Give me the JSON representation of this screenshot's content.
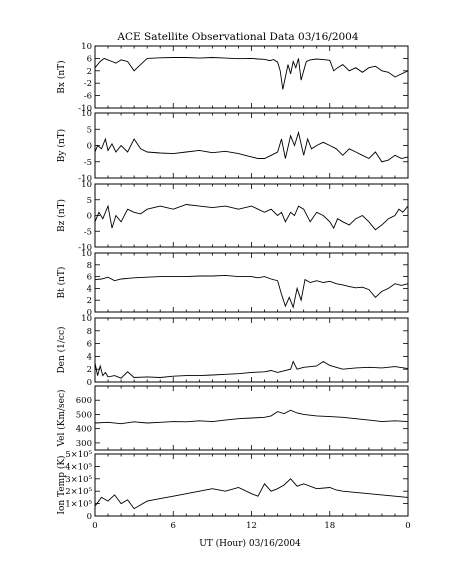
{
  "chart_data": {
    "type": "line",
    "title": "ACE Satellite Observational Data   03/16/2004",
    "xlabel": "UT (Hour)   03/16/2004",
    "x_ticks": [
      "0",
      "6",
      "12",
      "18",
      "0"
    ],
    "xlim": [
      0,
      24
    ],
    "grid": false,
    "panels": [
      {
        "ylabel": "Bx (nT)",
        "ylim": [
          -10,
          10
        ],
        "yticks": [
          "10",
          "6",
          "2",
          "-2",
          "-6",
          "-10"
        ],
        "series": [
          {
            "x": [
              0,
              0.2,
              0.4,
              0.7,
              1,
              1.3,
              1.6,
              2,
              2.5,
              3,
              3.5,
              4,
              5,
              6,
              7,
              8,
              9,
              10,
              11,
              12,
              12.5,
              13,
              13.4,
              13.7,
              14,
              14.2,
              14.4,
              14.6,
              14.8,
              15,
              15.2,
              15.4,
              15.6,
              15.8,
              16,
              16.2,
              16.5,
              17,
              17.5,
              18,
              18.3,
              18.6,
              19,
              19.5,
              20,
              20.5,
              21,
              21.5,
              22,
              22.5,
              23,
              23.5,
              24
            ],
            "values": [
              3,
              4,
              5,
              6,
              5.5,
              5,
              4.5,
              5.5,
              5,
              2,
              4,
              6,
              6.2,
              6.3,
              6.3,
              6.1,
              6.3,
              6.1,
              5.9,
              6,
              5.8,
              5.7,
              5.3,
              5.6,
              4.8,
              2,
              -4,
              0,
              4,
              1,
              5,
              3,
              6,
              -1,
              2,
              5,
              5.5,
              5.8,
              5.6,
              5.4,
              2,
              3,
              4,
              2,
              3,
              1.5,
              3,
              3.5,
              2,
              1.5,
              0,
              1,
              2
            ]
          }
        ]
      },
      {
        "ylabel": "By (nT)",
        "ylim": [
          -10,
          10
        ],
        "yticks": [
          "10",
          "5",
          "0",
          "-5",
          "-10"
        ],
        "series": [
          {
            "x": [
              0,
              0.2,
              0.5,
              0.8,
              1,
              1.3,
              1.6,
              2,
              2.5,
              3,
              3.5,
              4,
              5,
              6,
              7,
              8,
              9,
              10,
              11,
              11.5,
              12,
              12.5,
              13,
              13.5,
              14,
              14.3,
              14.6,
              15,
              15.3,
              15.6,
              16,
              16.3,
              16.6,
              17,
              17.5,
              18,
              18.5,
              19,
              19.5,
              20,
              20.5,
              21,
              21.5,
              22,
              22.5,
              23,
              23.5,
              24
            ],
            "values": [
              -2,
              0,
              -1,
              2,
              -1.5,
              0.5,
              -2,
              0,
              -2,
              2,
              -1,
              -2,
              -2.3,
              -2.5,
              -2,
              -1.5,
              -2.2,
              -1.8,
              -2.5,
              -3,
              -3.5,
              -4,
              -4,
              -3,
              -2,
              2,
              -4,
              3,
              0,
              4,
              -3,
              2,
              -1,
              0,
              1,
              0,
              -1,
              -3,
              -1,
              -2,
              -3,
              -4,
              -2,
              -5,
              -4.5,
              -3,
              -4,
              -3.5
            ]
          }
        ]
      },
      {
        "ylabel": "Bz (nT)",
        "ylim": [
          -10,
          10
        ],
        "yticks": [
          "10",
          "5",
          "0",
          "-5",
          "-10"
        ],
        "series": [
          {
            "x": [
              0,
              0.3,
              0.6,
              1,
              1.3,
              1.6,
              2,
              2.5,
              3,
              3.5,
              4,
              5,
              6,
              7,
              8,
              9,
              10,
              11,
              12,
              12.5,
              13,
              13.5,
              14,
              14.3,
              14.6,
              15,
              15.3,
              15.6,
              16,
              16.5,
              17,
              17.5,
              18,
              18.3,
              18.6,
              19,
              19.5,
              20,
              20.5,
              21,
              21.5,
              22,
              22.5,
              23,
              23.3,
              23.6,
              24
            ],
            "values": [
              -2,
              1,
              -1,
              3,
              -4,
              0,
              -2,
              2,
              1,
              0.5,
              2,
              3,
              2,
              3.5,
              3,
              2.5,
              3,
              2,
              3,
              2,
              1,
              2,
              0,
              1,
              -2,
              1,
              0,
              3,
              2,
              -2,
              1,
              0,
              -2,
              -4,
              -1,
              -2,
              -3,
              -1,
              0,
              -2,
              -4.5,
              -3,
              -1,
              0,
              2,
              1,
              3
            ]
          }
        ]
      },
      {
        "ylabel": "Bt (nT)",
        "ylim": [
          0,
          10
        ],
        "yticks": [
          "10",
          "8",
          "6",
          "4",
          "2",
          "0"
        ],
        "series": [
          {
            "x": [
              0,
              0.5,
              1,
              1.5,
              2,
              3,
              4,
              5,
              6,
              7,
              8,
              9,
              10,
              11,
              12,
              12.5,
              13,
              13.5,
              14,
              14.3,
              14.6,
              14.9,
              15.2,
              15.5,
              15.8,
              16.1,
              16.5,
              17,
              17.5,
              18,
              18.5,
              19,
              19.5,
              20,
              20.5,
              21,
              21.5,
              22,
              22.5,
              23,
              23.5,
              24
            ],
            "values": [
              5.5,
              5.6,
              5.9,
              5.3,
              5.6,
              5.8,
              5.9,
              6,
              6,
              6,
              6.1,
              6.1,
              6.2,
              6,
              6,
              5.8,
              6,
              5.6,
              5.3,
              3,
              1,
              2.5,
              0.8,
              4,
              2,
              5.5,
              5,
              5.3,
              5,
              5.2,
              4.8,
              4.6,
              4.3,
              4.1,
              4.2,
              3.8,
              2.5,
              3.5,
              4,
              4.8,
              4.5,
              4.8
            ]
          }
        ]
      },
      {
        "ylabel": "Den (1/cc)",
        "ylim": [
          0,
          10
        ],
        "yticks": [
          "10",
          "8",
          "6",
          "4",
          "2",
          "0"
        ],
        "series": [
          {
            "x": [
              0,
              0.2,
              0.4,
              0.6,
              0.8,
              1,
              1.5,
              2,
              2.5,
              3,
              4,
              5,
              6,
              7,
              8,
              9,
              10,
              11,
              12,
              13,
              13.5,
              14,
              15,
              15.2,
              15.5,
              16,
              17,
              17.5,
              18,
              19,
              20,
              21,
              22,
              23,
              24
            ],
            "values": [
              3,
              1,
              2.5,
              1,
              1.5,
              0.8,
              1,
              0.6,
              1.6,
              0.7,
              0.8,
              0.7,
              0.9,
              1,
              1,
              1.1,
              1.2,
              1.3,
              1.5,
              1.6,
              1.8,
              1.5,
              2,
              3.2,
              2,
              2.3,
              2.5,
              3.2,
              2.6,
              2,
              2.2,
              2.3,
              2.2,
              2.4,
              2.1
            ]
          }
        ]
      },
      {
        "ylabel": "Vel (Km/sec)",
        "ylim": [
          250,
          700
        ],
        "yticks": [
          "600",
          "500",
          "400",
          "300"
        ],
        "series": [
          {
            "x": [
              0,
              1,
              2,
              3,
              4,
              5,
              6,
              7,
              8,
              9,
              10,
              11,
              12,
              13,
              13.5,
              14,
              14.5,
              15,
              15.5,
              16,
              17,
              18,
              19,
              20,
              21,
              22,
              23,
              24
            ],
            "values": [
              440,
              445,
              435,
              448,
              440,
              445,
              450,
              448,
              455,
              450,
              460,
              470,
              475,
              480,
              490,
              520,
              505,
              530,
              510,
              500,
              490,
              485,
              480,
              470,
              460,
              450,
              455,
              450
            ]
          }
        ]
      },
      {
        "ylabel": "Ion Temp (K)",
        "ylim": [
          0,
          500000
        ],
        "yticks": [
          "5×10⁵",
          "4×10⁵",
          "3×10⁵",
          "2×10⁵",
          "1×10⁵",
          "0"
        ],
        "series": [
          {
            "x": [
              0,
              0.5,
              1,
              1.5,
              2,
              2.5,
              3,
              4,
              5,
              6,
              7,
              8,
              9,
              10,
              11,
              12,
              12.5,
              13,
              13.5,
              14,
              14.5,
              15,
              15.5,
              16,
              17,
              18,
              18.5,
              19,
              20,
              21,
              22,
              23,
              24
            ],
            "values": [
              80000,
              150000,
              120000,
              170000,
              100000,
              130000,
              60000,
              120000,
              140000,
              160000,
              180000,
              200000,
              220000,
              200000,
              230000,
              180000,
              160000,
              260000,
              200000,
              220000,
              250000,
              300000,
              240000,
              260000,
              220000,
              230000,
              210000,
              200000,
              190000,
              180000,
              170000,
              160000,
              150000
            ]
          }
        ]
      }
    ]
  }
}
